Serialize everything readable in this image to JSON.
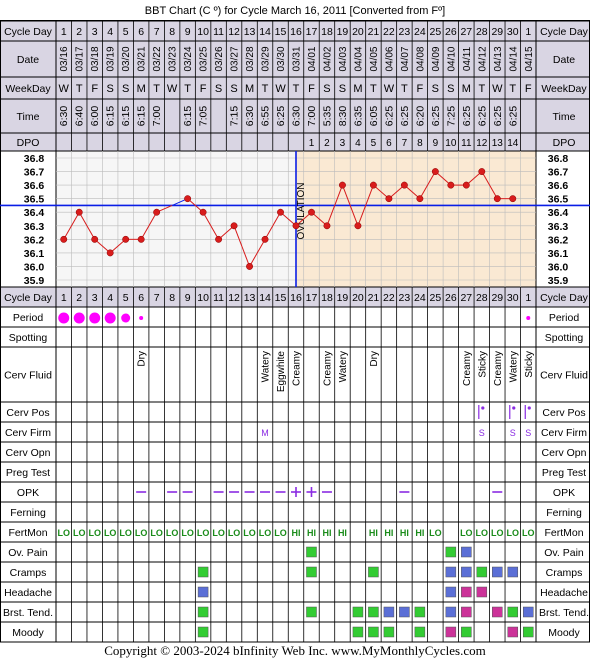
{
  "title": "BBT Chart (C º) for Cycle March 16, 2011  [Converted from Fº]",
  "copyright": "Copyright © 2003-2024 bInfinity Web Inc.     www.MyMonthlyCycles.com",
  "colors": {
    "header_bg": "#d9d5e3",
    "pre_bg": "#f6f6f6",
    "post_bg": "#fae9d3",
    "temp_line": "#d81c1c",
    "coverline": "#0a1ee6",
    "ovulation_line": "#0a1ee6",
    "period_dot": "#ff00ff",
    "fertmon": "#1a8c1a",
    "green_box": "#33cc33",
    "blue_box": "#5b6fd6",
    "magenta_box": "#cc3399",
    "violet": "#8a2be2"
  },
  "rows": {
    "cycle_day": "Cycle Day",
    "date": "Date",
    "weekday": "WeekDay",
    "time": "Time",
    "dpo": "DPO",
    "period": "Period",
    "spotting": "Spotting",
    "cerv_fluid": "Cerv Fluid",
    "cerv_pos": "Cerv Pos",
    "cerv_firm": "Cerv Firm",
    "cerv_opn": "Cerv Opn",
    "preg_test": "Preg Test",
    "opk": "OPK",
    "ferning": "Ferning",
    "fertmon": "FertMon",
    "ov_pain": "Ov. Pain",
    "cramps": "Cramps",
    "headache": "Headache",
    "brst_tend": "Brst. Tend.",
    "moody": "Moody"
  },
  "cycle_days": [
    "1",
    "2",
    "3",
    "4",
    "5",
    "6",
    "7",
    "8",
    "9",
    "10",
    "11",
    "12",
    "13",
    "14",
    "15",
    "16",
    "17",
    "18",
    "19",
    "20",
    "21",
    "22",
    "23",
    "24",
    "25",
    "26",
    "27",
    "28",
    "29",
    "30",
    "1"
  ],
  "dates": [
    "03/16",
    "03/17",
    "03/18",
    "03/19",
    "03/20",
    "03/21",
    "03/22",
    "03/23",
    "03/24",
    "03/25",
    "03/26",
    "03/27",
    "03/28",
    "03/29",
    "03/30",
    "03/31",
    "04/01",
    "04/02",
    "04/03",
    "04/04",
    "04/05",
    "04/06",
    "04/07",
    "04/08",
    "04/09",
    "04/10",
    "04/11",
    "04/12",
    "04/13",
    "04/14",
    "04/15"
  ],
  "weekdays": [
    "W",
    "T",
    "F",
    "S",
    "S",
    "M",
    "T",
    "W",
    "T",
    "F",
    "S",
    "S",
    "M",
    "T",
    "W",
    "T",
    "F",
    "S",
    "S",
    "M",
    "T",
    "W",
    "T",
    "F",
    "S",
    "S",
    "M",
    "T",
    "W",
    "T",
    "F"
  ],
  "times": [
    "6:30",
    "6:40",
    "6:00",
    "6:15",
    "6:15",
    "6:15",
    "7:00",
    "",
    "6:15",
    "7:05",
    "",
    "7:15",
    "6:30",
    "6:55",
    "6:25",
    "6:30",
    "7:00",
    "5:35",
    "8:30",
    "6:35",
    "6:05",
    "6:25",
    "6:25",
    "6:20",
    "6:25",
    "7:25",
    "6:25",
    "6:25",
    "6:25",
    "6:25",
    ""
  ],
  "dpo": [
    "",
    "",
    "",
    "",
    "",
    "",
    "",
    "",
    "",
    "",
    "",
    "",
    "",
    "",
    "",
    "",
    "1",
    "2",
    "3",
    "4",
    "5",
    "6",
    "7",
    "8",
    "9",
    "10",
    "11",
    "12",
    "13",
    "14",
    ""
  ],
  "ovulation_label": "OVULATION",
  "chart_data": {
    "type": "line",
    "title": "BBT Chart (C º) for Cycle March 16, 2011  [Converted from Fº]",
    "x": [
      1,
      2,
      3,
      4,
      5,
      6,
      7,
      8,
      9,
      10,
      11,
      12,
      13,
      14,
      15,
      16,
      17,
      18,
      19,
      20,
      21,
      22,
      23,
      24,
      25,
      26,
      27,
      28,
      29,
      30
    ],
    "y": [
      36.2,
      36.4,
      36.2,
      36.1,
      36.2,
      36.2,
      36.4,
      36.45,
      36.5,
      36.4,
      36.2,
      36.3,
      36.0,
      36.2,
      36.4,
      36.3,
      36.4,
      36.3,
      36.6,
      36.3,
      36.6,
      36.5,
      36.6,
      36.5,
      36.7,
      36.6,
      36.6,
      36.7,
      36.5,
      36.5
    ],
    "point_markers": [
      true,
      true,
      true,
      true,
      true,
      true,
      true,
      false,
      true,
      true,
      true,
      true,
      true,
      true,
      true,
      true,
      true,
      true,
      true,
      true,
      true,
      true,
      true,
      true,
      true,
      true,
      true,
      true,
      true,
      true
    ],
    "y_ticks": [
      "36.8",
      "36.7",
      "36.6",
      "36.5",
      "36.4",
      "36.3",
      "36.2",
      "36.1",
      "36.0",
      "35.9"
    ],
    "ylim": [
      35.9,
      36.8
    ],
    "coverline": 36.45,
    "ovulation_day": 16,
    "grid": true
  },
  "period": [
    "big",
    "big",
    "big",
    "big",
    "mid",
    "small",
    "",
    "",
    "",
    "",
    "",
    "",
    "",
    "",
    "",
    "",
    "",
    "",
    "",
    "",
    "",
    "",
    "",
    "",
    "",
    "",
    "",
    "",
    "",
    "",
    "small"
  ],
  "cerv_fluid": [
    "",
    "",
    "",
    "",
    "",
    "Dry",
    "",
    "",
    "",
    "",
    "",
    "",
    "",
    "Watery",
    "Eggwhite",
    "Creamy",
    "",
    "Creamy",
    "Watery",
    "",
    "Dry",
    "",
    "",
    "",
    "",
    "",
    "Creamy",
    "Sticky",
    "Creamy",
    "Watery",
    "Sticky"
  ],
  "cerv_pos": [
    "",
    "",
    "",
    "",
    "",
    "",
    "",
    "",
    "",
    "",
    "",
    "",
    "",
    "",
    "",
    "",
    "",
    "",
    "",
    "",
    "",
    "",
    "",
    "",
    "",
    "",
    "",
    "mark",
    "",
    "mark",
    "mark"
  ],
  "cerv_firm": [
    "",
    "",
    "",
    "",
    "",
    "",
    "",
    "",
    "",
    "",
    "",
    "",
    "",
    "M",
    "",
    "",
    "",
    "",
    "",
    "",
    "",
    "",
    "",
    "",
    "",
    "",
    "",
    "S",
    "",
    "S",
    "S"
  ],
  "opk": [
    "",
    "",
    "",
    "",
    "",
    "-",
    "",
    "-",
    "-",
    "",
    "-",
    "-",
    "-",
    "-",
    "-",
    "+",
    "+",
    "-",
    "",
    "",
    "",
    "",
    "-",
    "",
    "",
    "",
    "",
    "",
    "-",
    "",
    ""
  ],
  "fertmon": [
    "LO",
    "LO",
    "LO",
    "LO",
    "LO",
    "LO",
    "LO",
    "LO",
    "LO",
    "LO",
    "LO",
    "LO",
    "LO",
    "LO",
    "LO",
    "HI",
    "HI",
    "HI",
    "HI",
    "",
    "HI",
    "HI",
    "HI",
    "HI",
    "LO",
    "",
    "LO",
    "LO",
    "LO",
    "LO",
    "LO"
  ],
  "ov_pain": [
    "",
    "",
    "",
    "",
    "",
    "",
    "",
    "",
    "",
    "",
    "",
    "",
    "",
    "",
    "",
    "",
    "G",
    "",
    "",
    "",
    "",
    "",
    "",
    "",
    "",
    "G",
    "B",
    "",
    "",
    "",
    ""
  ],
  "cramps": [
    "",
    "",
    "",
    "",
    "",
    "",
    "",
    "",
    "",
    "G",
    "",
    "",
    "",
    "",
    "",
    "",
    "G",
    "",
    "",
    "",
    "G",
    "",
    "",
    "",
    "",
    "B",
    "B",
    "G",
    "B",
    "B",
    ""
  ],
  "headache": [
    "",
    "",
    "",
    "",
    "",
    "",
    "",
    "",
    "",
    "B",
    "",
    "",
    "",
    "",
    "",
    "",
    "",
    "",
    "",
    "",
    "",
    "",
    "",
    "",
    "",
    "B",
    "M",
    "M",
    "",
    "",
    ""
  ],
  "brst_tend": [
    "",
    "",
    "",
    "",
    "",
    "",
    "",
    "",
    "",
    "G",
    "",
    "",
    "",
    "",
    "",
    "",
    "G",
    "",
    "",
    "G",
    "G",
    "B",
    "B",
    "G",
    "",
    "B",
    "M",
    "",
    "M",
    "G",
    "B"
  ],
  "moody": [
    "",
    "",
    "",
    "",
    "",
    "",
    "",
    "",
    "",
    "G",
    "",
    "",
    "",
    "",
    "",
    "",
    "",
    "",
    "",
    "G",
    "G",
    "G",
    "",
    "G",
    "",
    "M",
    "G",
    "",
    "",
    "M",
    "G"
  ]
}
